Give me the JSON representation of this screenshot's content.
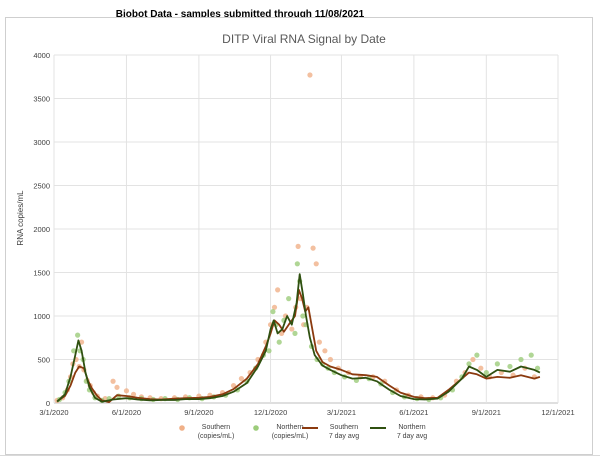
{
  "header": {
    "text": "Biobot Data - samples submitted through 11/08/2021"
  },
  "chart_data": {
    "type": "line",
    "title": "DITP Viral RNA Signal by Date",
    "ylabel": "RNA copies/mL",
    "xlabel": "",
    "ylim": [
      0,
      4000
    ],
    "yticks": [
      0,
      500,
      1000,
      1500,
      2000,
      2500,
      3000,
      3500,
      4000
    ],
    "xlim": [
      "2020-03-01",
      "2021-12-01"
    ],
    "xticks": [
      {
        "date": "2020-03-01",
        "label": "3/1/2020"
      },
      {
        "date": "2020-06-01",
        "label": "6/1/2020"
      },
      {
        "date": "2020-09-01",
        "label": "9/1/2020"
      },
      {
        "date": "2020-12-01",
        "label": "12/1/2020"
      },
      {
        "date": "2021-03-01",
        "label": "3/1/2021"
      },
      {
        "date": "2021-06-01",
        "label": "6/1/2021"
      },
      {
        "date": "2021-09-01",
        "label": "9/1/2021"
      },
      {
        "date": "2021-12-01",
        "label": "12/1/2021"
      }
    ],
    "grid": true,
    "legend_position": "bottom",
    "series": [
      {
        "name": "Southern (copies/mL)",
        "kind": "scatter",
        "color": "#f0b088",
        "points": [
          [
            "2020-03-05",
            30
          ],
          [
            "2020-03-12",
            60
          ],
          [
            "2020-03-18",
            150
          ],
          [
            "2020-03-22",
            300
          ],
          [
            "2020-03-25",
            450
          ],
          [
            "2020-03-29",
            500
          ],
          [
            "2020-04-02",
            420
          ],
          [
            "2020-04-05",
            700
          ],
          [
            "2020-04-08",
            380
          ],
          [
            "2020-04-12",
            260
          ],
          [
            "2020-04-16",
            200
          ],
          [
            "2020-04-20",
            120
          ],
          [
            "2020-04-25",
            80
          ],
          [
            "2020-05-05",
            50
          ],
          [
            "2020-05-15",
            250
          ],
          [
            "2020-05-20",
            180
          ],
          [
            "2020-06-01",
            140
          ],
          [
            "2020-06-10",
            100
          ],
          [
            "2020-06-20",
            70
          ],
          [
            "2020-07-01",
            60
          ],
          [
            "2020-07-15",
            50
          ],
          [
            "2020-08-01",
            60
          ],
          [
            "2020-08-15",
            70
          ],
          [
            "2020-09-01",
            80
          ],
          [
            "2020-09-15",
            90
          ],
          [
            "2020-10-01",
            120
          ],
          [
            "2020-10-15",
            200
          ],
          [
            "2020-10-25",
            280
          ],
          [
            "2020-11-05",
            350
          ],
          [
            "2020-11-15",
            500
          ],
          [
            "2020-11-25",
            700
          ],
          [
            "2020-12-01",
            900
          ],
          [
            "2020-12-06",
            1100
          ],
          [
            "2020-12-10",
            1300
          ],
          [
            "2020-12-15",
            800
          ],
          [
            "2020-12-20",
            1000
          ],
          [
            "2020-12-28",
            850
          ],
          [
            "2021-01-02",
            1100
          ],
          [
            "2021-01-05",
            1800
          ],
          [
            "2021-01-08",
            1200
          ],
          [
            "2021-01-12",
            900
          ],
          [
            "2021-01-16",
            1100
          ],
          [
            "2021-01-20",
            3770
          ],
          [
            "2021-01-24",
            1780
          ],
          [
            "2021-01-28",
            1600
          ],
          [
            "2021-02-01",
            700
          ],
          [
            "2021-02-08",
            600
          ],
          [
            "2021-02-15",
            500
          ],
          [
            "2021-02-25",
            400
          ],
          [
            "2021-03-10",
            350
          ],
          [
            "2021-03-25",
            300
          ],
          [
            "2021-04-10",
            300
          ],
          [
            "2021-04-25",
            250
          ],
          [
            "2021-05-10",
            150
          ],
          [
            "2021-05-25",
            90
          ],
          [
            "2021-06-10",
            70
          ],
          [
            "2021-06-25",
            60
          ],
          [
            "2021-07-10",
            90
          ],
          [
            "2021-07-25",
            250
          ],
          [
            "2021-08-05",
            350
          ],
          [
            "2021-08-15",
            500
          ],
          [
            "2021-08-25",
            400
          ],
          [
            "2021-09-05",
            300
          ],
          [
            "2021-09-20",
            350
          ],
          [
            "2021-10-05",
            320
          ],
          [
            "2021-10-20",
            400
          ],
          [
            "2021-11-01",
            300
          ]
        ]
      },
      {
        "name": "Northern (copies/mL)",
        "kind": "scatter",
        "color": "#9ccc7a",
        "points": [
          [
            "2020-03-08",
            40
          ],
          [
            "2020-03-15",
            120
          ],
          [
            "2020-03-20",
            250
          ],
          [
            "2020-03-26",
            600
          ],
          [
            "2020-03-31",
            780
          ],
          [
            "2020-04-03",
            600
          ],
          [
            "2020-04-07",
            500
          ],
          [
            "2020-04-11",
            250
          ],
          [
            "2020-04-15",
            150
          ],
          [
            "2020-04-22",
            60
          ],
          [
            "2020-05-01",
            30
          ],
          [
            "2020-05-10",
            50
          ],
          [
            "2020-05-22",
            80
          ],
          [
            "2020-06-05",
            60
          ],
          [
            "2020-06-20",
            50
          ],
          [
            "2020-07-05",
            40
          ],
          [
            "2020-07-20",
            50
          ],
          [
            "2020-08-05",
            40
          ],
          [
            "2020-08-20",
            60
          ],
          [
            "2020-09-05",
            50
          ],
          [
            "2020-09-20",
            70
          ],
          [
            "2020-10-05",
            90
          ],
          [
            "2020-10-20",
            150
          ],
          [
            "2020-11-01",
            250
          ],
          [
            "2020-11-12",
            400
          ],
          [
            "2020-11-22",
            550
          ],
          [
            "2020-11-29",
            600
          ],
          [
            "2020-12-04",
            1050
          ],
          [
            "2020-12-08",
            900
          ],
          [
            "2020-12-12",
            700
          ],
          [
            "2020-12-18",
            950
          ],
          [
            "2020-12-24",
            1200
          ],
          [
            "2021-01-01",
            800
          ],
          [
            "2021-01-04",
            1600
          ],
          [
            "2021-01-07",
            1400
          ],
          [
            "2021-01-11",
            1000
          ],
          [
            "2021-01-15",
            900
          ],
          [
            "2021-01-22",
            650
          ],
          [
            "2021-01-29",
            500
          ],
          [
            "2021-02-05",
            450
          ],
          [
            "2021-02-12",
            400
          ],
          [
            "2021-02-20",
            350
          ],
          [
            "2021-03-05",
            300
          ],
          [
            "2021-03-20",
            260
          ],
          [
            "2021-04-05",
            280
          ],
          [
            "2021-04-20",
            220
          ],
          [
            "2021-05-05",
            120
          ],
          [
            "2021-05-20",
            70
          ],
          [
            "2021-06-05",
            50
          ],
          [
            "2021-06-20",
            40
          ],
          [
            "2021-07-05",
            60
          ],
          [
            "2021-07-20",
            150
          ],
          [
            "2021-08-01",
            300
          ],
          [
            "2021-08-10",
            450
          ],
          [
            "2021-08-20",
            550
          ],
          [
            "2021-09-01",
            350
          ],
          [
            "2021-09-15",
            450
          ],
          [
            "2021-10-01",
            420
          ],
          [
            "2021-10-15",
            500
          ],
          [
            "2021-10-28",
            550
          ],
          [
            "2021-11-05",
            400
          ]
        ]
      },
      {
        "name": "Southern 7 day avg",
        "kind": "line",
        "color": "#8b3a0f",
        "points": [
          [
            "2020-03-05",
            20
          ],
          [
            "2020-03-15",
            80
          ],
          [
            "2020-03-22",
            200
          ],
          [
            "2020-03-28",
            350
          ],
          [
            "2020-04-02",
            420
          ],
          [
            "2020-04-08",
            400
          ],
          [
            "2020-04-13",
            260
          ],
          [
            "2020-04-18",
            170
          ],
          [
            "2020-04-25",
            80
          ],
          [
            "2020-05-01",
            30
          ],
          [
            "2020-05-10",
            10
          ],
          [
            "2020-05-20",
            90
          ],
          [
            "2020-06-01",
            80
          ],
          [
            "2020-06-15",
            60
          ],
          [
            "2020-07-01",
            45
          ],
          [
            "2020-07-15",
            40
          ],
          [
            "2020-08-01",
            50
          ],
          [
            "2020-08-15",
            55
          ],
          [
            "2020-09-01",
            60
          ],
          [
            "2020-09-15",
            70
          ],
          [
            "2020-10-01",
            100
          ],
          [
            "2020-10-15",
            160
          ],
          [
            "2020-11-01",
            280
          ],
          [
            "2020-11-15",
            450
          ],
          [
            "2020-11-25",
            650
          ],
          [
            "2020-12-01",
            800
          ],
          [
            "2020-12-06",
            950
          ],
          [
            "2020-12-12",
            900
          ],
          [
            "2020-12-18",
            820
          ],
          [
            "2020-12-24",
            900
          ],
          [
            "2021-01-01",
            1000
          ],
          [
            "2021-01-06",
            1300
          ],
          [
            "2021-01-10",
            1200
          ],
          [
            "2021-01-14",
            1050
          ],
          [
            "2021-01-18",
            1100
          ],
          [
            "2021-01-22",
            900
          ],
          [
            "2021-01-28",
            600
          ],
          [
            "2021-02-05",
            470
          ],
          [
            "2021-02-15",
            420
          ],
          [
            "2021-03-01",
            380
          ],
          [
            "2021-03-15",
            330
          ],
          [
            "2021-04-01",
            320
          ],
          [
            "2021-04-15",
            300
          ],
          [
            "2021-05-01",
            200
          ],
          [
            "2021-05-15",
            120
          ],
          [
            "2021-06-01",
            70
          ],
          [
            "2021-06-15",
            55
          ],
          [
            "2021-07-01",
            60
          ],
          [
            "2021-07-15",
            150
          ],
          [
            "2021-08-01",
            280
          ],
          [
            "2021-08-10",
            350
          ],
          [
            "2021-08-20",
            330
          ],
          [
            "2021-09-01",
            280
          ],
          [
            "2021-09-15",
            300
          ],
          [
            "2021-10-01",
            290
          ],
          [
            "2021-10-15",
            320
          ],
          [
            "2021-11-01",
            280
          ],
          [
            "2021-11-08",
            300
          ]
        ]
      },
      {
        "name": "Northern 7 day avg",
        "kind": "line",
        "color": "#2f5010",
        "points": [
          [
            "2020-03-05",
            15
          ],
          [
            "2020-03-15",
            100
          ],
          [
            "2020-03-22",
            300
          ],
          [
            "2020-03-28",
            550
          ],
          [
            "2020-04-01",
            720
          ],
          [
            "2020-04-05",
            600
          ],
          [
            "2020-04-10",
            350
          ],
          [
            "2020-04-15",
            180
          ],
          [
            "2020-04-22",
            60
          ],
          [
            "2020-05-01",
            15
          ],
          [
            "2020-05-15",
            40
          ],
          [
            "2020-06-01",
            55
          ],
          [
            "2020-06-15",
            40
          ],
          [
            "2020-07-01",
            30
          ],
          [
            "2020-07-15",
            35
          ],
          [
            "2020-08-01",
            35
          ],
          [
            "2020-08-15",
            45
          ],
          [
            "2020-09-01",
            45
          ],
          [
            "2020-09-15",
            55
          ],
          [
            "2020-10-01",
            80
          ],
          [
            "2020-10-15",
            130
          ],
          [
            "2020-11-01",
            230
          ],
          [
            "2020-11-15",
            420
          ],
          [
            "2020-11-25",
            600
          ],
          [
            "2020-12-01",
            850
          ],
          [
            "2020-12-05",
            950
          ],
          [
            "2020-12-10",
            800
          ],
          [
            "2020-12-16",
            850
          ],
          [
            "2020-12-22",
            1000
          ],
          [
            "2020-12-28",
            900
          ],
          [
            "2021-01-03",
            1150
          ],
          [
            "2021-01-07",
            1480
          ],
          [
            "2021-01-11",
            1250
          ],
          [
            "2021-01-15",
            1000
          ],
          [
            "2021-01-20",
            750
          ],
          [
            "2021-01-26",
            550
          ],
          [
            "2021-02-05",
            430
          ],
          [
            "2021-02-15",
            380
          ],
          [
            "2021-03-01",
            320
          ],
          [
            "2021-03-15",
            280
          ],
          [
            "2021-04-01",
            290
          ],
          [
            "2021-04-15",
            250
          ],
          [
            "2021-05-01",
            150
          ],
          [
            "2021-05-15",
            80
          ],
          [
            "2021-06-01",
            45
          ],
          [
            "2021-06-15",
            40
          ],
          [
            "2021-07-01",
            50
          ],
          [
            "2021-07-15",
            130
          ],
          [
            "2021-08-01",
            280
          ],
          [
            "2021-08-10",
            420
          ],
          [
            "2021-08-20",
            380
          ],
          [
            "2021-09-01",
            300
          ],
          [
            "2021-09-15",
            380
          ],
          [
            "2021-10-01",
            360
          ],
          [
            "2021-10-15",
            420
          ],
          [
            "2021-11-01",
            380
          ],
          [
            "2021-11-08",
            350
          ]
        ]
      }
    ],
    "legend": [
      {
        "line1": "Southern",
        "line2": "(copies/mL)",
        "marker": "dot",
        "color": "#f0b088"
      },
      {
        "line1": "Northern",
        "line2": "(copies/mL)",
        "marker": "dot",
        "color": "#9ccc7a"
      },
      {
        "line1": "Southern",
        "line2": "7 day avg",
        "marker": "line",
        "color": "#8b3a0f"
      },
      {
        "line1": "Northern",
        "line2": "7 day avg",
        "marker": "line",
        "color": "#2f5010"
      }
    ]
  }
}
